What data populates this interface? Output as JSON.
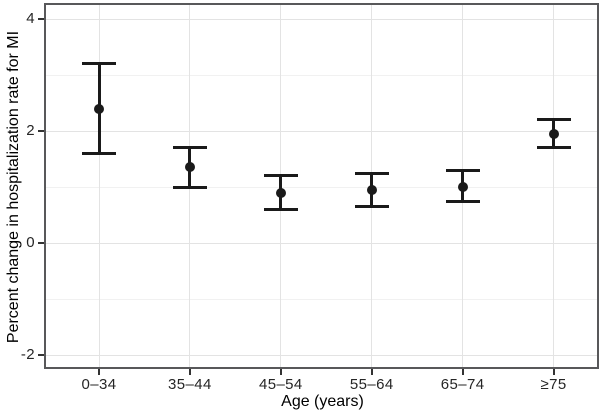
{
  "chart_data": {
    "type": "scatter",
    "subtype": "point_estimates_with_error_bars",
    "title": "",
    "xlabel": "Age (years)",
    "ylabel": "Percent change in hospitalization rate for MI",
    "categories": [
      "0–34",
      "35–44",
      "45–54",
      "55–64",
      "65–74",
      "≥75"
    ],
    "series": [
      {
        "name": "Percent change in MI hospitalization rate",
        "estimates": [
          2.4,
          1.35,
          0.9,
          0.95,
          1.0,
          1.95
        ],
        "ci_lower": [
          1.6,
          1.0,
          0.6,
          0.65,
          0.75,
          1.7
        ],
        "ci_upper": [
          3.2,
          1.7,
          1.2,
          1.25,
          1.3,
          2.2
        ]
      }
    ],
    "ylim": [
      -2.25,
      4.25
    ],
    "yticks": [
      -2,
      0,
      2,
      4
    ],
    "ytick_labels": [
      "-2",
      "0",
      "2",
      "4"
    ],
    "minor_gridlines": [
      -1,
      1,
      3
    ],
    "grid": "on",
    "legend": "none",
    "marker": "filled-circle-with-capped-error-bars",
    "colors": {
      "point": "#1a1a1a",
      "panel_border": "#58585a",
      "grid_major": "#e3e3e3",
      "grid_minor": "#f1f1f1",
      "tick": "#333333",
      "tick_label": "#262626",
      "axis_title": "#000000",
      "background": "#ffffff"
    }
  }
}
